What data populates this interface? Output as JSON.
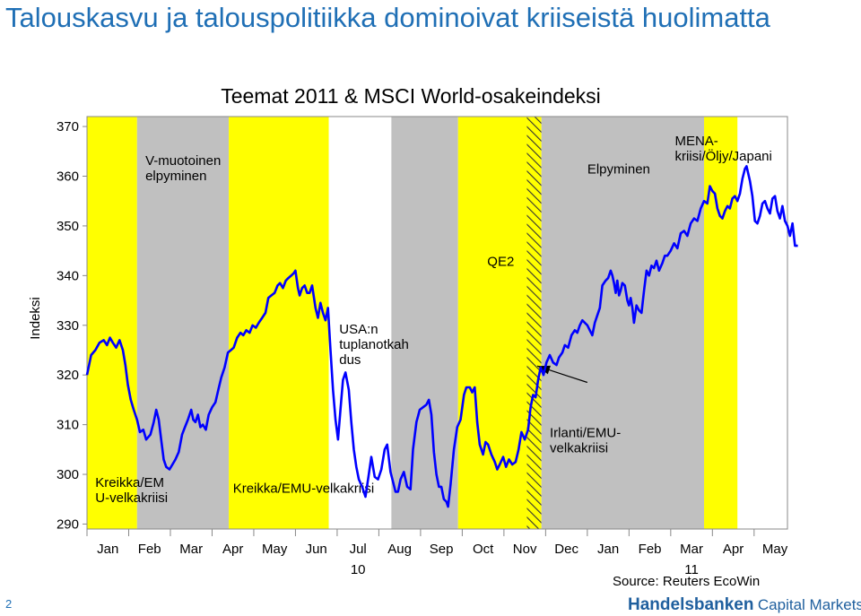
{
  "slide": {
    "title": "Talouskasvu ja talouspolitiikka dominoivat kriiseistä huolimatta",
    "page_number": "2",
    "source": "Source: Reuters EcoWin",
    "brand": {
      "name": "Handelsbanken",
      "sub": "Capital Markets"
    }
  },
  "colors": {
    "yellow": "#ffff00",
    "gray": "#c0c0c0",
    "line": "#0000ff",
    "title": "#1f6fb5",
    "brand": "#1f5f9e"
  },
  "chart_data": {
    "type": "line",
    "title": "Teemat 2011 & MSCI World-osakeindeksi",
    "ylabel": "Indeksi",
    "xlabel": "",
    "ylim": [
      289,
      372
    ],
    "yticks": [
      290,
      300,
      310,
      320,
      330,
      340,
      350,
      360,
      370
    ],
    "xlim": [
      0,
      16.8
    ],
    "x_units": "months from start of Jan 2010",
    "months": [
      "Jan",
      "Feb",
      "Mar",
      "Apr",
      "May",
      "Jun",
      "Jul",
      "Aug",
      "Sep",
      "Oct",
      "Nov",
      "Dec",
      "Jan",
      "Feb",
      "Mar",
      "Apr",
      "May"
    ],
    "year_labels": [
      {
        "label": "10",
        "month_index": 6
      },
      {
        "label": "11",
        "month_index": 14
      }
    ],
    "grid": false,
    "legend": "none",
    "bands": [
      {
        "start": 0,
        "end": 1.2,
        "color": "yellow"
      },
      {
        "start": 1.2,
        "end": 3.4,
        "color": "gray"
      },
      {
        "start": 3.4,
        "end": 5.8,
        "color": "yellow"
      },
      {
        "start": 5.8,
        "end": 7.3,
        "color": "white"
      },
      {
        "start": 7.3,
        "end": 8.9,
        "color": "gray"
      },
      {
        "start": 8.9,
        "end": 10.55,
        "color": "yellow"
      },
      {
        "start": 10.55,
        "end": 10.9,
        "color": "hatched"
      },
      {
        "start": 10.9,
        "end": 14.8,
        "color": "gray"
      },
      {
        "start": 14.8,
        "end": 15.6,
        "color": "yellow"
      }
    ],
    "annotations": [
      {
        "text": "V-muotoinen\nelpyminen",
        "x": 1.4,
        "y": 362.3
      },
      {
        "text": "Kreikka/EM\nU-velkakriisi",
        "x": 0.2,
        "y": 297.5
      },
      {
        "text": "Kreikka/EMU-velkakriisi",
        "x": 3.5,
        "y": 296.3
      },
      {
        "text": "USA:n\ntuplanotkah\ndus",
        "x": 6.05,
        "y": 328.3
      },
      {
        "text": "QE2",
        "x": 9.6,
        "y": 342
      },
      {
        "text": "Elpyminen",
        "x": 12.0,
        "y": 360.5
      },
      {
        "text": "MENA-\nkriisi/Öljy/Japani",
        "x": 14.1,
        "y": 366.2
      },
      {
        "text": "Irlanti/EMU-\nvelkakriisi",
        "x": 11.1,
        "y": 307.5
      }
    ],
    "arrow": {
      "from": [
        12.0,
        318.5
      ],
      "to": [
        10.8,
        321.8
      ]
    },
    "series": [
      {
        "values": [
          [
            0.0,
            320
          ],
          [
            0.05,
            322
          ],
          [
            0.1,
            324
          ],
          [
            0.2,
            325
          ],
          [
            0.3,
            326.5
          ],
          [
            0.4,
            327
          ],
          [
            0.48,
            326
          ],
          [
            0.55,
            327.5
          ],
          [
            0.62,
            326.5
          ],
          [
            0.7,
            325.5
          ],
          [
            0.78,
            327
          ],
          [
            0.86,
            325
          ],
          [
            0.92,
            322
          ],
          [
            0.98,
            318
          ],
          [
            1.05,
            315
          ],
          [
            1.12,
            313
          ],
          [
            1.2,
            311
          ],
          [
            1.27,
            308.5
          ],
          [
            1.35,
            309
          ],
          [
            1.42,
            307
          ],
          [
            1.52,
            308
          ],
          [
            1.6,
            310.5
          ],
          [
            1.66,
            313
          ],
          [
            1.72,
            311
          ],
          [
            1.78,
            307
          ],
          [
            1.84,
            303
          ],
          [
            1.9,
            301.5
          ],
          [
            1.98,
            301
          ],
          [
            2.05,
            302
          ],
          [
            2.12,
            303
          ],
          [
            2.2,
            304.5
          ],
          [
            2.28,
            308
          ],
          [
            2.35,
            309.5
          ],
          [
            2.42,
            311
          ],
          [
            2.5,
            313
          ],
          [
            2.55,
            311
          ],
          [
            2.6,
            310.5
          ],
          [
            2.66,
            312
          ],
          [
            2.72,
            309.5
          ],
          [
            2.78,
            310
          ],
          [
            2.85,
            309
          ],
          [
            2.92,
            312
          ],
          [
            3.0,
            313.5
          ],
          [
            3.08,
            314.5
          ],
          [
            3.15,
            317
          ],
          [
            3.22,
            319.5
          ],
          [
            3.3,
            321.5
          ],
          [
            3.38,
            324.5
          ],
          [
            3.45,
            325
          ],
          [
            3.52,
            325.5
          ],
          [
            3.6,
            327.5
          ],
          [
            3.68,
            328.5
          ],
          [
            3.75,
            328
          ],
          [
            3.82,
            329
          ],
          [
            3.9,
            328.5
          ],
          [
            3.97,
            330
          ],
          [
            4.05,
            329.5
          ],
          [
            4.12,
            330.5
          ],
          [
            4.2,
            331.5
          ],
          [
            4.28,
            332.5
          ],
          [
            4.35,
            335.5
          ],
          [
            4.42,
            336
          ],
          [
            4.5,
            336.5
          ],
          [
            4.57,
            338
          ],
          [
            4.63,
            338.5
          ],
          [
            4.7,
            337.5
          ],
          [
            4.77,
            339
          ],
          [
            4.83,
            339.5
          ],
          [
            4.9,
            340
          ],
          [
            4.96,
            340.5
          ],
          [
            5.0,
            341
          ],
          [
            5.06,
            337.5
          ],
          [
            5.1,
            336
          ],
          [
            5.16,
            337.5
          ],
          [
            5.22,
            338
          ],
          [
            5.28,
            336.5
          ],
          [
            5.34,
            336.5
          ],
          [
            5.4,
            338
          ],
          [
            5.48,
            333.5
          ],
          [
            5.54,
            331.5
          ],
          [
            5.6,
            334.5
          ],
          [
            5.66,
            332.5
          ],
          [
            5.72,
            331
          ],
          [
            5.78,
            333.5
          ],
          [
            5.84,
            325
          ],
          [
            5.9,
            317
          ],
          [
            5.96,
            311
          ],
          [
            6.02,
            307
          ],
          [
            6.08,
            313
          ],
          [
            6.14,
            319
          ],
          [
            6.2,
            320.5
          ],
          [
            6.28,
            317
          ],
          [
            6.34,
            310.5
          ],
          [
            6.4,
            305
          ],
          [
            6.46,
            301.5
          ],
          [
            6.52,
            299
          ],
          [
            6.6,
            297.5
          ],
          [
            6.68,
            295.5
          ],
          [
            6.75,
            299.5
          ],
          [
            6.82,
            303.5
          ],
          [
            6.9,
            299.5
          ],
          [
            6.98,
            299
          ],
          [
            7.06,
            301
          ],
          [
            7.14,
            305
          ],
          [
            7.2,
            306
          ],
          [
            7.28,
            300.5
          ],
          [
            7.34,
            298.5
          ],
          [
            7.4,
            296.5
          ],
          [
            7.46,
            296.5
          ],
          [
            7.52,
            299
          ],
          [
            7.6,
            300.5
          ],
          [
            7.68,
            297.5
          ],
          [
            7.76,
            297
          ],
          [
            7.82,
            305
          ],
          [
            7.9,
            310.5
          ],
          [
            7.98,
            313
          ],
          [
            8.06,
            313.5
          ],
          [
            8.14,
            314
          ],
          [
            8.2,
            315
          ],
          [
            8.26,
            312
          ],
          [
            8.32,
            304.5
          ],
          [
            8.38,
            300
          ],
          [
            8.44,
            297.5
          ],
          [
            8.5,
            297.5
          ],
          [
            8.56,
            295
          ],
          [
            8.62,
            294.5
          ],
          [
            8.66,
            293.5
          ],
          [
            8.72,
            298
          ],
          [
            8.8,
            305
          ],
          [
            8.88,
            309.5
          ],
          [
            8.96,
            311
          ],
          [
            9.04,
            316
          ],
          [
            9.1,
            317.5
          ],
          [
            9.18,
            317.5
          ],
          [
            9.24,
            316.5
          ],
          [
            9.3,
            317.5
          ],
          [
            9.36,
            310.5
          ],
          [
            9.42,
            306
          ],
          [
            9.5,
            304
          ],
          [
            9.56,
            306.5
          ],
          [
            9.62,
            306
          ],
          [
            9.7,
            304
          ],
          [
            9.78,
            302.5
          ],
          [
            9.84,
            301
          ],
          [
            9.9,
            302
          ],
          [
            9.98,
            303.5
          ],
          [
            10.05,
            301.5
          ],
          [
            10.12,
            303
          ],
          [
            10.2,
            302
          ],
          [
            10.28,
            302.5
          ],
          [
            10.35,
            305
          ],
          [
            10.42,
            308.5
          ],
          [
            10.5,
            307
          ],
          [
            10.58,
            309
          ],
          [
            10.64,
            313.5
          ],
          [
            10.7,
            316
          ],
          [
            10.76,
            315.5
          ],
          [
            10.82,
            319
          ],
          [
            10.88,
            321.5
          ],
          [
            10.95,
            320
          ],
          [
            11.02,
            322.5
          ],
          [
            11.1,
            324
          ],
          [
            11.18,
            322.5
          ],
          [
            11.26,
            322
          ],
          [
            11.32,
            323.5
          ],
          [
            11.4,
            324.5
          ],
          [
            11.46,
            326
          ],
          [
            11.54,
            325.5
          ],
          [
            11.62,
            328
          ],
          [
            11.7,
            329
          ],
          [
            11.76,
            328.5
          ],
          [
            11.82,
            330
          ],
          [
            11.88,
            331
          ],
          [
            11.94,
            330.5
          ],
          [
            12.0,
            330
          ],
          [
            12.06,
            329
          ],
          [
            12.12,
            328
          ],
          [
            12.18,
            330.5
          ],
          [
            12.24,
            332
          ],
          [
            12.3,
            333.5
          ],
          [
            12.36,
            338
          ],
          [
            12.44,
            339
          ],
          [
            12.5,
            339.5
          ],
          [
            12.56,
            341
          ],
          [
            12.6,
            340
          ],
          [
            12.64,
            338.5
          ],
          [
            12.68,
            336.5
          ],
          [
            12.72,
            339
          ],
          [
            12.76,
            336
          ],
          [
            12.8,
            337
          ],
          [
            12.84,
            338.5
          ],
          [
            12.9,
            338
          ],
          [
            12.96,
            335
          ],
          [
            13.0,
            334
          ],
          [
            13.04,
            335.5
          ],
          [
            13.08,
            333.5
          ],
          [
            13.12,
            330.5
          ],
          [
            13.18,
            334
          ],
          [
            13.24,
            333
          ],
          [
            13.3,
            332.5
          ],
          [
            13.36,
            337
          ],
          [
            13.42,
            341
          ],
          [
            13.48,
            340
          ],
          [
            13.54,
            342
          ],
          [
            13.6,
            341.5
          ],
          [
            13.66,
            343
          ],
          [
            13.72,
            341
          ],
          [
            13.8,
            342.5
          ],
          [
            13.86,
            344
          ],
          [
            13.92,
            344
          ],
          [
            14.0,
            345
          ],
          [
            14.08,
            346.5
          ],
          [
            14.16,
            345.5
          ],
          [
            14.24,
            348.5
          ],
          [
            14.32,
            349
          ],
          [
            14.4,
            348
          ],
          [
            14.48,
            350.5
          ],
          [
            14.56,
            351.5
          ],
          [
            14.64,
            351
          ],
          [
            14.72,
            353.5
          ],
          [
            14.8,
            355
          ],
          [
            14.88,
            354.5
          ],
          [
            14.94,
            358
          ],
          [
            15.0,
            357
          ],
          [
            15.06,
            356.5
          ],
          [
            15.12,
            353.5
          ],
          [
            15.18,
            352
          ],
          [
            15.24,
            351.5
          ],
          [
            15.3,
            353
          ],
          [
            15.36,
            354
          ],
          [
            15.42,
            353.5
          ],
          [
            15.48,
            355.5
          ],
          [
            15.54,
            356
          ],
          [
            15.6,
            355
          ],
          [
            15.66,
            356.5
          ],
          [
            15.72,
            359.5
          ],
          [
            15.78,
            361.5
          ],
          [
            15.82,
            362
          ],
          [
            15.86,
            360.5
          ],
          [
            15.9,
            359
          ],
          [
            15.96,
            356
          ],
          [
            16.02,
            351
          ],
          [
            16.08,
            350.5
          ],
          [
            16.14,
            352
          ],
          [
            16.2,
            354.5
          ],
          [
            16.26,
            355
          ],
          [
            16.32,
            353.5
          ],
          [
            16.38,
            352.5
          ],
          [
            16.44,
            355.5
          ],
          [
            16.5,
            356
          ],
          [
            16.56,
            353
          ],
          [
            16.62,
            351.5
          ],
          [
            16.68,
            354
          ],
          [
            16.74,
            351
          ],
          [
            16.8,
            350
          ],
          [
            16.86,
            348
          ],
          [
            16.92,
            350.5
          ],
          [
            16.98,
            346
          ],
          [
            17.05,
            346
          ]
        ]
      }
    ]
  }
}
